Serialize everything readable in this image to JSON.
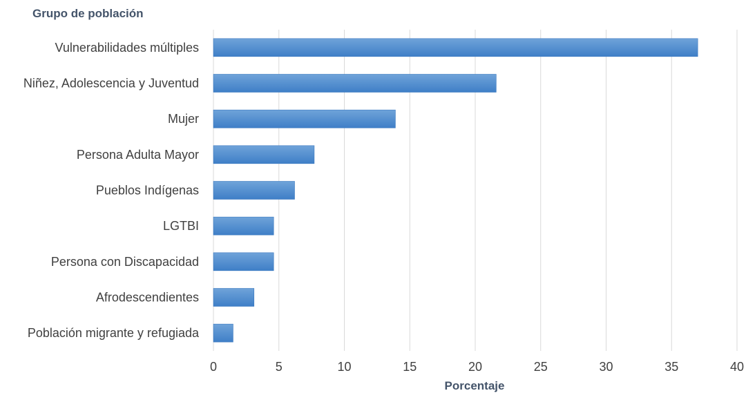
{
  "chart_data": {
    "type": "bar",
    "orientation": "horizontal",
    "ylabel": "Grupo de población",
    "xlabel": "Porcentaje",
    "categories": [
      "Vulnerabilidades múltiples",
      "Niñez, Adolescencia y Juventud",
      "Mujer",
      "Persona Adulta Mayor",
      "Pueblos Indígenas",
      "LGTBI",
      "Persona con Discapacidad",
      "Afrodescendientes",
      "Población migrante y refugiada"
    ],
    "values": [
      37.0,
      21.6,
      13.9,
      7.7,
      6.2,
      4.6,
      4.6,
      3.1,
      1.5
    ],
    "xlim": [
      0,
      40
    ],
    "xticks": [
      0,
      5,
      10,
      15,
      20,
      25,
      30,
      35,
      40
    ],
    "grid": "vertical",
    "legend": "none",
    "colors": {
      "bar_top": "#6fa3d9",
      "bar_bottom": "#3f7fc7",
      "bar_stroke": "#3a78bf",
      "grid": "#d9d9d9",
      "text": "#404040",
      "title_text": "#44546a"
    }
  }
}
